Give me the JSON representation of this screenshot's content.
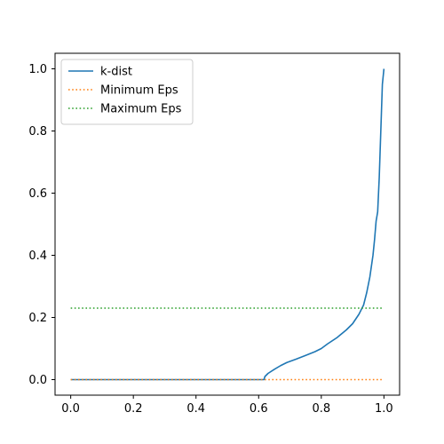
{
  "chart_data": {
    "type": "line",
    "title": "",
    "xlabel": "",
    "ylabel": "",
    "xlim": [
      -0.05,
      1.05
    ],
    "ylim": [
      -0.05,
      1.05
    ],
    "xticks": [
      0.0,
      0.2,
      0.4,
      0.6,
      0.8,
      1.0
    ],
    "xtick_labels": [
      "0.0",
      "0.2",
      "0.4",
      "0.6",
      "0.8",
      "1.0"
    ],
    "yticks": [
      0.0,
      0.2,
      0.4,
      0.6,
      0.8,
      1.0
    ],
    "ytick_labels": [
      "0.0",
      "0.2",
      "0.4",
      "0.6",
      "0.8",
      "1.0"
    ],
    "grid": false,
    "legend_position": "top-left",
    "series": [
      {
        "name": "k-dist",
        "color": "#1f77b4",
        "style": "solid",
        "points": [
          [
            0.0,
            0.0
          ],
          [
            0.2,
            0.0
          ],
          [
            0.4,
            0.0
          ],
          [
            0.6,
            0.0
          ],
          [
            0.617,
            0.0
          ],
          [
            0.62,
            0.01
          ],
          [
            0.63,
            0.02
          ],
          [
            0.65,
            0.033
          ],
          [
            0.67,
            0.045
          ],
          [
            0.69,
            0.055
          ],
          [
            0.72,
            0.066
          ],
          [
            0.75,
            0.078
          ],
          [
            0.78,
            0.09
          ],
          [
            0.8,
            0.1
          ],
          [
            0.82,
            0.115
          ],
          [
            0.85,
            0.135
          ],
          [
            0.88,
            0.16
          ],
          [
            0.9,
            0.18
          ],
          [
            0.92,
            0.21
          ],
          [
            0.935,
            0.24
          ],
          [
            0.945,
            0.28
          ],
          [
            0.955,
            0.33
          ],
          [
            0.965,
            0.4
          ],
          [
            0.97,
            0.45
          ],
          [
            0.975,
            0.51
          ],
          [
            0.98,
            0.54
          ],
          [
            0.985,
            0.65
          ],
          [
            0.99,
            0.8
          ],
          [
            0.995,
            0.95
          ],
          [
            1.0,
            1.0
          ]
        ]
      },
      {
        "name": "Minimum Eps",
        "color": "#ff7f0e",
        "style": "dotted",
        "points": [
          [
            0.0,
            0.0
          ],
          [
            1.0,
            0.0
          ]
        ]
      },
      {
        "name": "Maximum Eps",
        "color": "#2ca02c",
        "style": "dotted",
        "points": [
          [
            0.0,
            0.23
          ],
          [
            1.0,
            0.23
          ]
        ]
      }
    ]
  }
}
